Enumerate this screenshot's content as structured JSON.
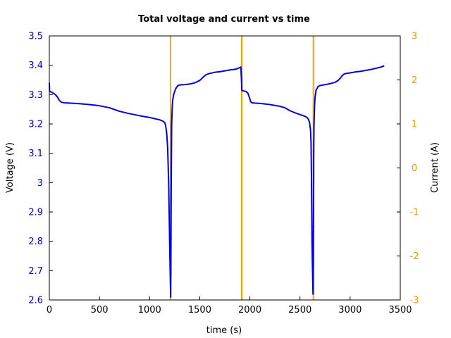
{
  "chart_data": {
    "type": "line",
    "title": "Total voltage and current vs time",
    "xlabel": "time (s)",
    "ylabel": "Voltage (V)",
    "y2label": "Current (A)",
    "xlim": [
      0,
      3500
    ],
    "ylim": [
      2.6,
      3.5
    ],
    "y2lim": [
      -3,
      3
    ],
    "xticks": [
      "0",
      "500",
      "1000",
      "1500",
      "2000",
      "2500",
      "3000",
      "3500"
    ],
    "yticks": [
      "2.6",
      "2.7",
      "2.8",
      "2.9",
      "3",
      "3.1",
      "3.2",
      "3.3",
      "3.4",
      "3.5"
    ],
    "y2ticks": [
      "-3",
      "-2",
      "-1",
      "0",
      "1",
      "2",
      "3"
    ],
    "grid": false,
    "colors": {
      "voltage": "#0000dd",
      "current": "#e0a000",
      "left_axis": "#0000cc",
      "right_axis": "#e0a000"
    },
    "series": [
      {
        "axis": "left",
        "x": [
          0,
          3,
          10,
          30,
          60,
          80,
          100,
          120,
          150,
          200,
          300,
          400,
          500,
          600,
          650,
          700,
          800,
          900,
          1000,
          1050,
          1100,
          1130,
          1150,
          1160,
          1170,
          1180,
          1190,
          1200,
          1205,
          1210,
          1212,
          1215,
          1220,
          1225,
          1230,
          1240,
          1260,
          1280,
          1300,
          1350,
          1400,
          1450,
          1500,
          1530,
          1560,
          1580,
          1600,
          1650,
          1700,
          1750,
          1800,
          1850,
          1880,
          1900,
          1910,
          1915,
          1920,
          1930,
          1940,
          1960,
          1980,
          1990,
          2000,
          2010,
          2020,
          2050,
          2100,
          2150,
          2200,
          2300,
          2350,
          2400,
          2450,
          2500,
          2550,
          2570,
          2585,
          2595,
          2605,
          2610,
          2615,
          2620,
          2625,
          2630,
          2635,
          2637,
          2640,
          2645,
          2650,
          2660,
          2680,
          2700,
          2720,
          2750,
          2800,
          2850,
          2880,
          2900,
          2920,
          2940,
          2960,
          3000,
          3050,
          3100,
          3150,
          3200,
          3250,
          3300,
          3340
        ],
        "y": [
          3.34,
          3.31,
          3.31,
          3.307,
          3.3,
          3.292,
          3.28,
          3.274,
          3.272,
          3.271,
          3.269,
          3.266,
          3.262,
          3.255,
          3.249,
          3.243,
          3.235,
          3.228,
          3.222,
          3.218,
          3.214,
          3.21,
          3.205,
          3.195,
          3.17,
          3.12,
          3.0,
          2.8,
          2.7,
          2.61,
          2.7,
          2.95,
          3.2,
          3.25,
          3.28,
          3.3,
          3.32,
          3.33,
          3.333,
          3.334,
          3.336,
          3.34,
          3.348,
          3.358,
          3.367,
          3.37,
          3.372,
          3.376,
          3.378,
          3.381,
          3.384,
          3.386,
          3.389,
          3.392,
          3.394,
          3.36,
          3.315,
          3.313,
          3.312,
          3.311,
          3.305,
          3.295,
          3.285,
          3.275,
          3.272,
          3.271,
          3.27,
          3.268,
          3.266,
          3.26,
          3.255,
          3.245,
          3.238,
          3.232,
          3.226,
          3.222,
          3.215,
          3.205,
          3.18,
          3.14,
          3.0,
          2.8,
          2.7,
          2.62,
          2.9,
          3.1,
          3.2,
          3.26,
          3.29,
          3.315,
          3.327,
          3.331,
          3.332,
          3.334,
          3.337,
          3.342,
          3.348,
          3.355,
          3.364,
          3.37,
          3.372,
          3.374,
          3.377,
          3.379,
          3.382,
          3.385,
          3.389,
          3.393,
          3.398
        ]
      },
      {
        "axis": "right",
        "x": [
          1205,
          1205,
          1210,
          1210,
          1915,
          1915,
          1925,
          1925,
          2630,
          2630,
          2640,
          2640
        ],
        "y": [
          3,
          -3,
          -3,
          3,
          3,
          -3,
          -3,
          3,
          3,
          -3,
          -3,
          3
        ]
      }
    ]
  }
}
